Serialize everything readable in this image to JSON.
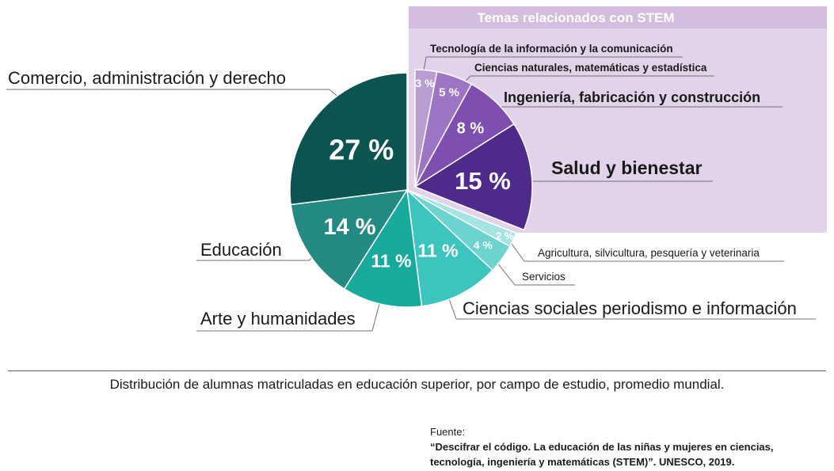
{
  "chart_data": {
    "type": "pie",
    "group_label": "Temas relacionados con STEM",
    "slices": [
      {
        "label": "Tecnología de la información y la comunicación",
        "value": 3,
        "pct_label": "3 %",
        "color": "#B89DD3",
        "group": "stem"
      },
      {
        "label": "Ciencias naturales, matemáticas y estadística",
        "value": 5,
        "pct_label": "5 %",
        "color": "#9C76C4",
        "group": "stem"
      },
      {
        "label": "Ingeniería, fabricación y construcción",
        "value": 8,
        "pct_label": "8 %",
        "color": "#7E4FB0",
        "group": "stem"
      },
      {
        "label": "Salud y bienestar",
        "value": 15,
        "pct_label": "15 %",
        "color": "#4E2A8A",
        "group": "stem"
      },
      {
        "label": "Agricultura, silvicultura, pesquería y veterinaria",
        "value": 2,
        "pct_label": "2 %",
        "color": "#A5E4E2",
        "group": "other"
      },
      {
        "label": "Servicios",
        "value": 4,
        "pct_label": "4 %",
        "color": "#6DD3CF",
        "group": "other"
      },
      {
        "label": "Ciencias sociales periodismo e información",
        "value": 11,
        "pct_label": "11 %",
        "color": "#3CC4BF",
        "group": "other"
      },
      {
        "label": "Arte y humanidades",
        "value": 11,
        "pct_label": "11 %",
        "color": "#19AA9E",
        "group": "other"
      },
      {
        "label": "Educación",
        "value": 14,
        "pct_label": "14 %",
        "color": "#238A82",
        "group": "other"
      },
      {
        "label": "Comercio, administración y derecho",
        "value": 27,
        "pct_label": "27 %",
        "color": "#0B544F",
        "group": "other"
      }
    ]
  },
  "colors": {
    "stem_panel": "#E3D3EA",
    "stem_title_band": "#D4BEDF",
    "leader_lines": "#6f6f6f"
  },
  "caption": "Distribución de alumnas matriculadas en educación superior, por campo de estudio, promedio mundial.",
  "source": {
    "label": "Fuente:",
    "line1": "“Descifrar el código. La educación de las niñas y mujeres en ciencias,",
    "line2": "tecnología, ingeniería y matemáticas (STEM)”. UNESCO, 2019."
  }
}
